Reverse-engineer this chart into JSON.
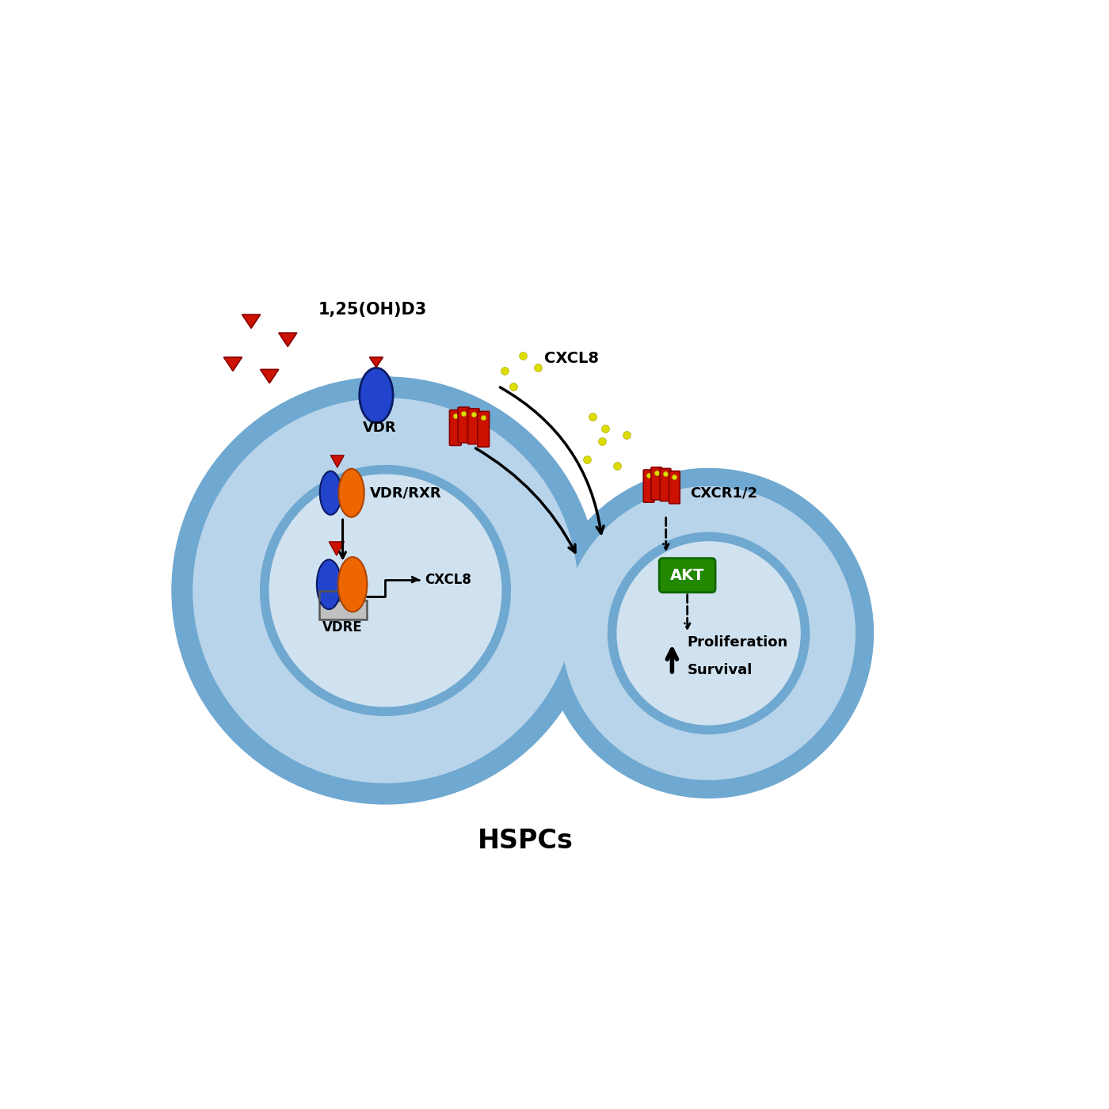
{
  "bg_color": "#ffffff",
  "cell_outer_color": "#6fa8d0",
  "cell_mid_color": "#b8d4ea",
  "cell_nuc_color": "#d0e2ef",
  "vdr_blue": "#2244cc",
  "rxr_orange": "#ee6600",
  "receptor_red": "#cc1100",
  "akt_green": "#228800",
  "akt_border": "#116600",
  "akt_text_color": "#ffffff",
  "arrow_color": "#000000",
  "text_color": "#000000",
  "yellow_dot": "#dddd00",
  "yellow_edge": "#aaaa00",
  "label_1_25": "1,25(OH)D3",
  "label_vdr": "VDR",
  "label_vdrrxr": "VDR/RXR",
  "label_vdre": "VDRE",
  "label_cxcl8_sec": "CXCL8",
  "label_cxcl8_nuc": "CXCL8",
  "label_cxcr": "CXCR1/2",
  "label_akt": "AKT",
  "label_prolif": "Proliferation",
  "label_surv": "Survival",
  "label_hspc": "HSPCs",
  "c1x": 4.0,
  "c1y": 6.5,
  "c1_rout": 3.5,
  "c1_rband": 0.35,
  "c1_rnuc": 1.9,
  "c2x": 9.3,
  "c2y": 5.8,
  "c2_rout": 2.7,
  "c2_rband": 0.3,
  "c2_rnuc": 1.5
}
